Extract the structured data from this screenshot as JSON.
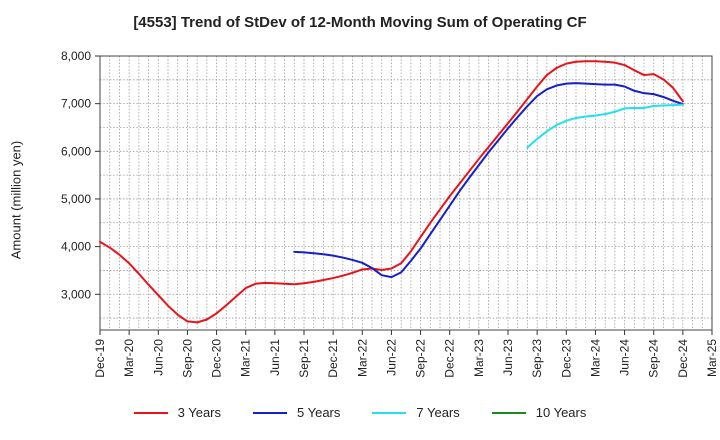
{
  "chart_data": {
    "type": "line",
    "title": "[4553]  Trend of StDev of 12-Month Moving Sum of Operating CF",
    "xlabel": "",
    "ylabel": "Amount (million yen)",
    "ylim": [
      2250,
      8000
    ],
    "yticks": [
      3000,
      4000,
      5000,
      6000,
      7000,
      8000
    ],
    "ytick_labels": [
      "3,000",
      "4,000",
      "5,000",
      "6,000",
      "7,000",
      "8,000"
    ],
    "x_range": [
      "2019-12",
      "2025-03"
    ],
    "xtick_labels": [
      "Dec-19",
      "Mar-20",
      "Jun-20",
      "Sep-20",
      "Dec-20",
      "Mar-21",
      "Jun-21",
      "Sep-21",
      "Dec-21",
      "Mar-22",
      "Jun-22",
      "Sep-22",
      "Dec-22",
      "Mar-23",
      "Jun-23",
      "Sep-23",
      "Dec-23",
      "Mar-24",
      "Jun-24",
      "Sep-24",
      "Dec-24",
      "Mar-25"
    ],
    "grid": true,
    "legend_position": "bottom",
    "series": [
      {
        "name": "3 Years",
        "color": "#e8141a",
        "x": [
          "2019-12",
          "2020-01",
          "2020-02",
          "2020-03",
          "2020-04",
          "2020-05",
          "2020-06",
          "2020-07",
          "2020-08",
          "2020-09",
          "2020-10",
          "2020-11",
          "2020-12",
          "2021-01",
          "2021-02",
          "2021-03",
          "2021-04",
          "2021-05",
          "2021-06",
          "2021-07",
          "2021-08",
          "2021-09",
          "2021-10",
          "2021-11",
          "2021-12",
          "2022-01",
          "2022-02",
          "2022-03",
          "2022-04",
          "2022-05",
          "2022-06",
          "2022-07",
          "2022-08",
          "2022-09",
          "2022-10",
          "2022-11",
          "2022-12",
          "2023-01",
          "2023-02",
          "2023-03",
          "2023-04",
          "2023-05",
          "2023-06",
          "2023-07",
          "2023-08",
          "2023-09",
          "2023-10",
          "2023-11",
          "2023-12",
          "2024-01",
          "2024-02",
          "2024-03",
          "2024-04",
          "2024-05",
          "2024-06",
          "2024-07",
          "2024-08",
          "2024-09",
          "2024-10",
          "2024-11",
          "2024-12"
        ],
        "values": [
          4100,
          3980,
          3830,
          3650,
          3430,
          3200,
          2980,
          2760,
          2570,
          2430,
          2410,
          2470,
          2600,
          2770,
          2950,
          3130,
          3220,
          3240,
          3230,
          3220,
          3210,
          3230,
          3260,
          3300,
          3340,
          3390,
          3450,
          3520,
          3540,
          3510,
          3540,
          3650,
          3900,
          4200,
          4500,
          4780,
          5060,
          5320,
          5580,
          5840,
          6090,
          6340,
          6590,
          6840,
          7100,
          7360,
          7600,
          7750,
          7840,
          7880,
          7890,
          7890,
          7880,
          7860,
          7810,
          7700,
          7600,
          7620,
          7510,
          7330,
          7050
        ]
      },
      {
        "name": "5 Years",
        "color": "#1420c8",
        "x": [
          "2021-08",
          "2021-09",
          "2021-10",
          "2021-11",
          "2021-12",
          "2022-01",
          "2022-02",
          "2022-03",
          "2022-04",
          "2022-05",
          "2022-06",
          "2022-07",
          "2022-08",
          "2022-09",
          "2022-10",
          "2022-11",
          "2022-12",
          "2023-01",
          "2023-02",
          "2023-03",
          "2023-04",
          "2023-05",
          "2023-06",
          "2023-07",
          "2023-08",
          "2023-09",
          "2023-10",
          "2023-11",
          "2023-12",
          "2024-01",
          "2024-02",
          "2024-03",
          "2024-04",
          "2024-05",
          "2024-06",
          "2024-07",
          "2024-08",
          "2024-09",
          "2024-10",
          "2024-11",
          "2024-12"
        ],
        "values": [
          3890,
          3880,
          3860,
          3840,
          3810,
          3770,
          3720,
          3660,
          3550,
          3400,
          3360,
          3460,
          3700,
          3960,
          4260,
          4560,
          4860,
          5160,
          5440,
          5710,
          5980,
          6230,
          6480,
          6720,
          6950,
          7160,
          7300,
          7380,
          7420,
          7430,
          7420,
          7410,
          7400,
          7400,
          7360,
          7270,
          7220,
          7200,
          7140,
          7060,
          6990
        ]
      },
      {
        "name": "7 Years",
        "color": "#22e0f0",
        "x": [
          "2023-08",
          "2023-09",
          "2023-10",
          "2023-11",
          "2023-12",
          "2024-01",
          "2024-02",
          "2024-03",
          "2024-04",
          "2024-05",
          "2024-06",
          "2024-07",
          "2024-08",
          "2024-09",
          "2024-10",
          "2024-11",
          "2024-12"
        ],
        "values": [
          6080,
          6260,
          6420,
          6550,
          6640,
          6700,
          6730,
          6750,
          6780,
          6830,
          6900,
          6910,
          6910,
          6950,
          6960,
          6970,
          6980
        ]
      },
      {
        "name": "10 Years",
        "color": "#1a8a1a",
        "x": [],
        "values": []
      }
    ]
  }
}
